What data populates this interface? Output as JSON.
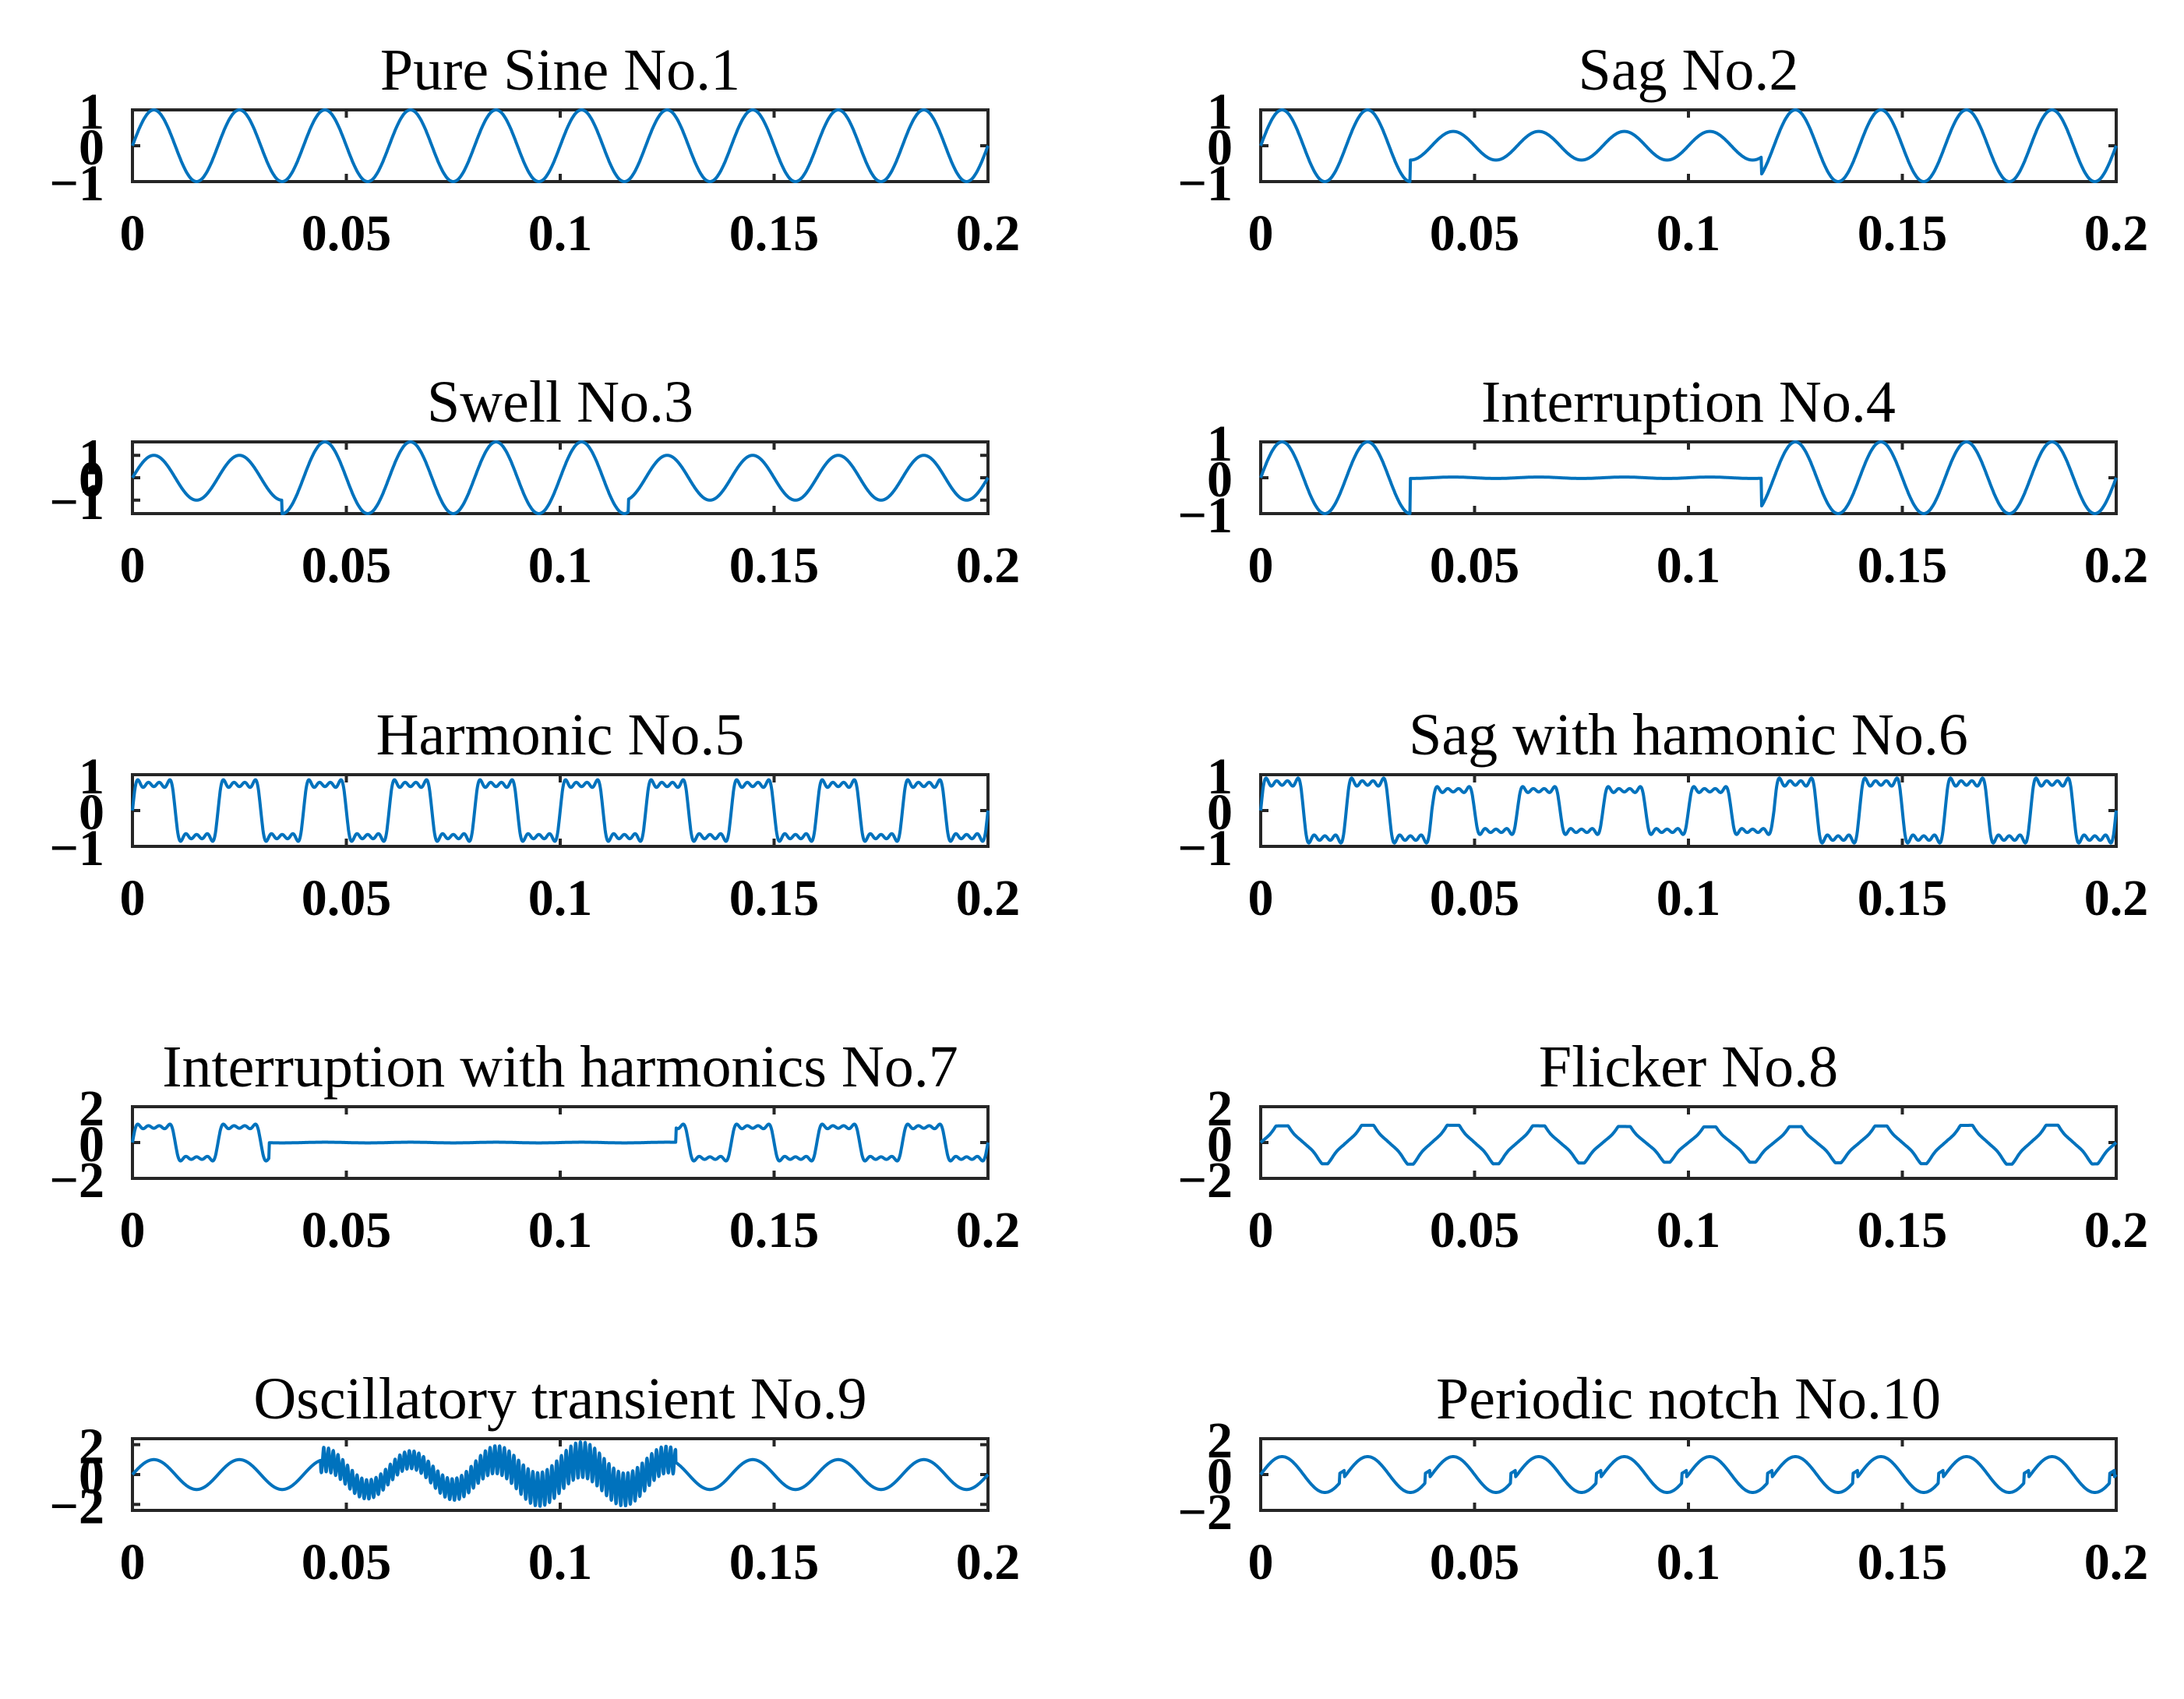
{
  "chart_data": [
    {
      "type": "line",
      "title": "Pure Sine No.1",
      "signal": "sine",
      "xlim": [
        0,
        0.2
      ],
      "ylim": [
        -1,
        1
      ],
      "xticks": [
        0,
        0.05,
        0.1,
        0.15,
        0.2
      ],
      "xticklabels": [
        "0",
        "0.05",
        "0.1",
        "0.15",
        "0.2"
      ],
      "yticks": [
        1,
        0,
        -1
      ],
      "yticklabels": [
        "1",
        "0",
        "−1"
      ],
      "series": [
        {
          "frequency_hz": 50,
          "amplitude": 1
        }
      ]
    },
    {
      "type": "line",
      "title": "Sag No.2",
      "signal": "sag",
      "xlim": [
        0,
        0.2
      ],
      "ylim": [
        -1,
        1
      ],
      "xticks": [
        0,
        0.05,
        0.1,
        0.15,
        0.2
      ],
      "xticklabels": [
        "0",
        "0.05",
        "0.1",
        "0.15",
        "0.2"
      ],
      "yticks": [
        1,
        0,
        -1
      ],
      "yticklabels": [
        "1",
        "0",
        "−1"
      ],
      "series": [
        {
          "frequency_hz": 50,
          "amplitude": 1,
          "event_start": 0.035,
          "event_end": 0.117,
          "event_amplitude": 0.4
        }
      ]
    },
    {
      "type": "line",
      "title": "Swell No.3",
      "signal": "swell",
      "xlim": [
        0,
        0.2
      ],
      "ylim": [
        -1.6,
        1.6
      ],
      "xticks": [
        0,
        0.05,
        0.1,
        0.15,
        0.2
      ],
      "xticklabels": [
        "0",
        "0.05",
        "0.1",
        "0.15",
        "0.2"
      ],
      "yticks": [
        1,
        0,
        -1
      ],
      "yticklabels": [
        "1",
        "0",
        "−1"
      ],
      "series": [
        {
          "frequency_hz": 50,
          "amplitude": 1,
          "event_start": 0.035,
          "event_end": 0.116,
          "event_amplitude": 1.6
        }
      ]
    },
    {
      "type": "line",
      "title": "Interruption No.4",
      "signal": "interruption",
      "xlim": [
        0,
        0.2
      ],
      "ylim": [
        -1,
        1
      ],
      "xticks": [
        0,
        0.05,
        0.1,
        0.15,
        0.2
      ],
      "xticklabels": [
        "0",
        "0.05",
        "0.1",
        "0.15",
        "0.2"
      ],
      "yticks": [
        1,
        0,
        -1
      ],
      "yticklabels": [
        "1",
        "0",
        "−1"
      ],
      "series": [
        {
          "frequency_hz": 50,
          "amplitude": 1,
          "event_start": 0.035,
          "event_end": 0.117,
          "event_amplitude": 0.02
        }
      ]
    },
    {
      "type": "line",
      "title": "Harmonic No.5",
      "signal": "harmonic",
      "xlim": [
        0,
        0.2
      ],
      "ylim": [
        -1,
        1
      ],
      "xticks": [
        0,
        0.05,
        0.1,
        0.15,
        0.2
      ],
      "xticklabels": [
        "0",
        "0.05",
        "0.1",
        "0.15",
        "0.2"
      ],
      "yticks": [
        1,
        0,
        -1
      ],
      "yticklabels": [
        "1",
        "0",
        "−1"
      ],
      "series": [
        {
          "frequency_hz": 50,
          "amplitude": 0.72
        }
      ]
    },
    {
      "type": "line",
      "title": "Sag with hamonic No.6",
      "signal": "sag_harmonic",
      "xlim": [
        0,
        0.2
      ],
      "ylim": [
        -1,
        1
      ],
      "xticks": [
        0,
        0.05,
        0.1,
        0.15,
        0.2
      ],
      "xticklabels": [
        "0",
        "0.05",
        "0.1",
        "0.15",
        "0.2"
      ],
      "yticks": [
        1,
        0,
        -1
      ],
      "yticklabels": [
        "1",
        "0",
        "−1"
      ],
      "series": [
        {
          "frequency_hz": 50,
          "amplitude": 0.76,
          "event_start": 0.04,
          "event_end": 0.12,
          "event_amplitude": 0.56
        }
      ]
    },
    {
      "type": "line",
      "title": "Interruption with harmonics No.7",
      "signal": "interruption_harmonic",
      "xlim": [
        0,
        0.2
      ],
      "ylim": [
        -2,
        2
      ],
      "xticks": [
        0,
        0.05,
        0.1,
        0.15,
        0.2
      ],
      "xticklabels": [
        "0",
        "0.05",
        "0.1",
        "0.15",
        "0.2"
      ],
      "yticks": [
        2,
        0,
        -2
      ],
      "yticklabels": [
        "2",
        "0",
        "−2"
      ],
      "series": [
        {
          "frequency_hz": 50,
          "amplitude": 0.86,
          "event_start": 0.032,
          "event_end": 0.127,
          "event_amplitude": 0.02
        }
      ]
    },
    {
      "type": "line",
      "title": "Flicker No.8",
      "signal": "flicker",
      "xlim": [
        0,
        0.2
      ],
      "ylim": [
        -2,
        2
      ],
      "xticks": [
        0,
        0.05,
        0.1,
        0.15,
        0.2
      ],
      "xticklabels": [
        "0",
        "0.05",
        "0.1",
        "0.15",
        "0.2"
      ],
      "yticks": [
        2,
        0,
        -2
      ],
      "yticklabels": [
        "2",
        "0",
        "−2"
      ],
      "series": [
        {
          "frequency_hz": 50,
          "amplitude": 1
        }
      ]
    },
    {
      "type": "line",
      "title": "Oscillatory transient No.9",
      "signal": "oscillatory",
      "xlim": [
        0,
        0.2
      ],
      "ylim": [
        -2.4,
        2.4
      ],
      "xticks": [
        0,
        0.05,
        0.1,
        0.15,
        0.2
      ],
      "xticklabels": [
        "0",
        "0.05",
        "0.1",
        "0.15",
        "0.2"
      ],
      "yticks": [
        2,
        0,
        -2
      ],
      "yticklabels": [
        "2",
        "0",
        "−2"
      ],
      "series": [
        {
          "frequency_hz": 50,
          "amplitude": 1,
          "event_start": 0.044,
          "event_end": 0.127
        }
      ]
    },
    {
      "type": "line",
      "title": "Periodic notch No.10",
      "signal": "notch",
      "xlim": [
        0,
        0.2
      ],
      "ylim": [
        -2,
        2
      ],
      "xticks": [
        0,
        0.05,
        0.1,
        0.15,
        0.2
      ],
      "xticklabels": [
        "0",
        "0.05",
        "0.1",
        "0.15",
        "0.2"
      ],
      "yticks": [
        2,
        0,
        -2
      ],
      "yticklabels": [
        "2",
        "0",
        "−2"
      ],
      "series": [
        {
          "frequency_hz": 50,
          "amplitude": 1
        }
      ]
    }
  ],
  "colors": {
    "line": "#0072BD",
    "axes": "#262626"
  }
}
